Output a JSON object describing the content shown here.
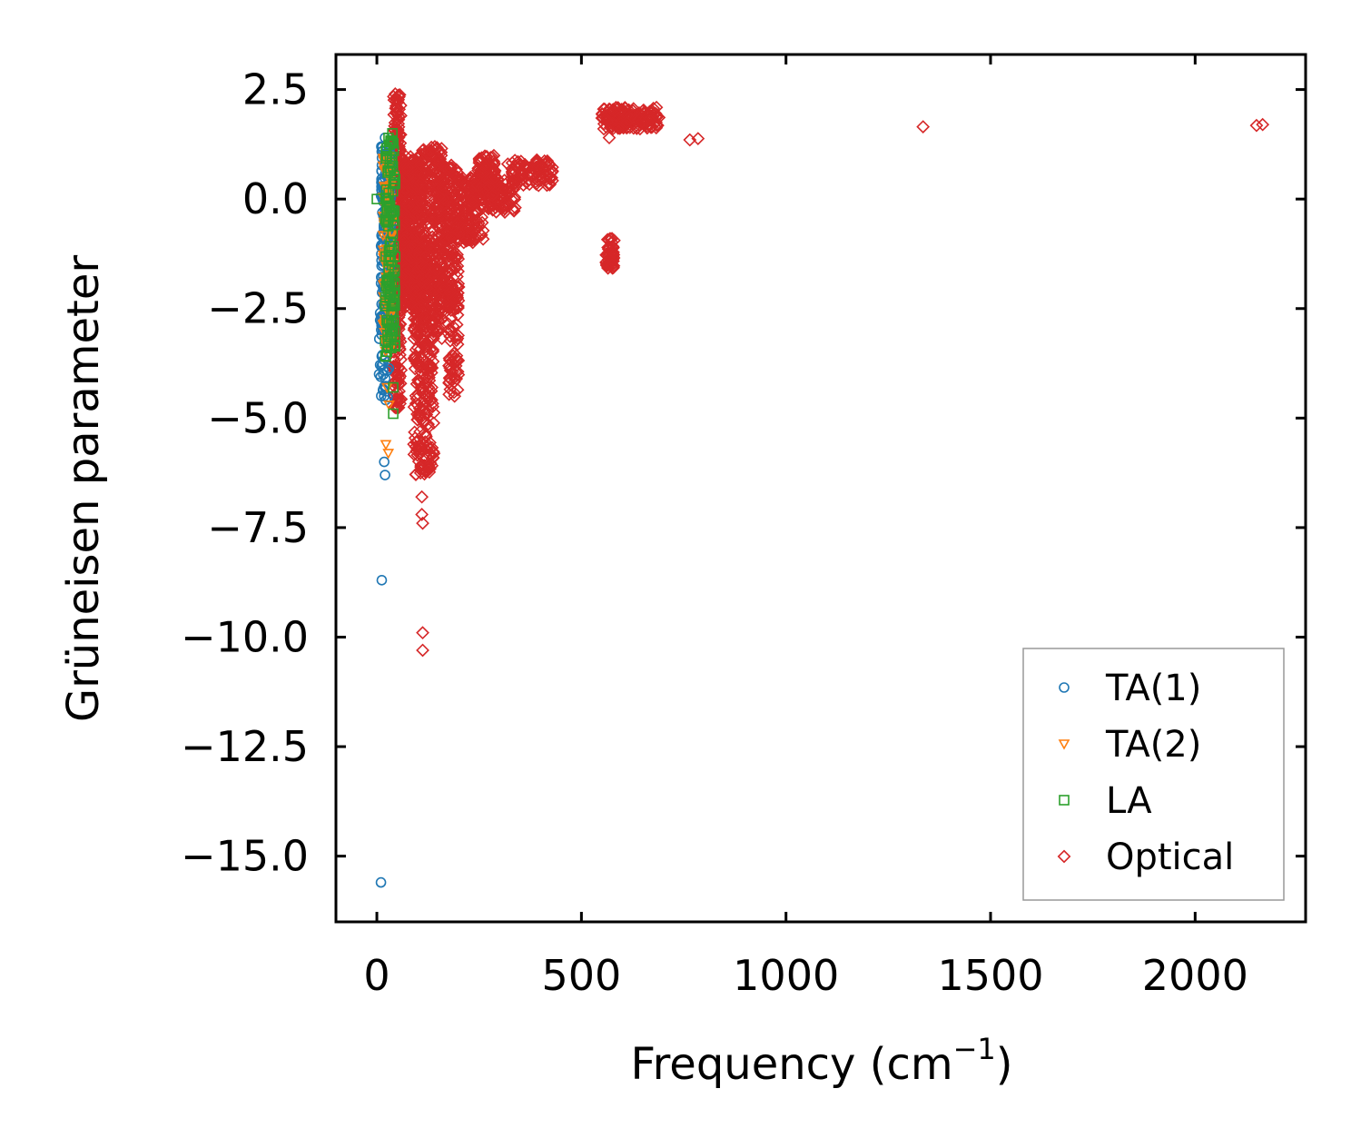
{
  "chart_data": {
    "type": "scatter",
    "title": "",
    "xlabel": "Frequency (cm",
    "xlabel_sup": "−1",
    "xlabel_end": ")",
    "ylabel": "Grüneisen parameter",
    "xlim": [
      -100,
      2270
    ],
    "ylim": [
      -16.5,
      3.3
    ],
    "xticks": [
      0,
      500,
      1000,
      1500,
      2000
    ],
    "xtick_labels": [
      "0",
      "500",
      "1000",
      "1500",
      "2000"
    ],
    "yticks": [
      2.5,
      0.0,
      -2.5,
      -5.0,
      -7.5,
      -10.0,
      -12.5,
      -15.0
    ],
    "ytick_labels": [
      "2.5",
      "0.0",
      "−2.5",
      "−5.0",
      "−7.5",
      "−10.0",
      "−12.5",
      "−15.0"
    ],
    "grid": false,
    "legend_position": "lower-right",
    "series": [
      {
        "name": "TA(1)",
        "color": "#1f77b4",
        "marker": "circle",
        "clusters": [
          {
            "x": [
              10,
              35
            ],
            "y": [
              -3.0,
              1.2
            ],
            "n": 220
          },
          {
            "x": [
              5,
              30
            ],
            "y": [
              -4.6,
              -2.0
            ],
            "n": 40
          }
        ],
        "points": [
          [
            20,
            1.4
          ],
          [
            15,
            1.1
          ],
          [
            8,
            -2.6
          ],
          [
            12,
            -3.8
          ],
          [
            18,
            -4.5
          ],
          [
            18,
            -6.0
          ],
          [
            20,
            -6.3
          ],
          [
            12,
            -8.7
          ],
          [
            10,
            -15.6
          ]
        ]
      },
      {
        "name": "TA(2)",
        "color": "#ff7f0e",
        "marker": "triangle-down",
        "clusters": [
          {
            "x": [
              15,
              40
            ],
            "y": [
              -3.5,
              1.0
            ],
            "n": 120
          }
        ],
        "points": [
          [
            25,
            -4.3
          ],
          [
            30,
            -4.7
          ],
          [
            22,
            -5.6
          ],
          [
            28,
            -5.8
          ],
          [
            20,
            -3.2
          ]
        ]
      },
      {
        "name": "LA",
        "color": "#2ca02c",
        "marker": "square",
        "clusters": [
          {
            "x": [
              20,
              45
            ],
            "y": [
              -3.6,
              1.4
            ],
            "n": 120
          }
        ],
        "points": [
          [
            0,
            0.0
          ],
          [
            38,
            1.5
          ],
          [
            40,
            -4.3
          ],
          [
            40,
            -4.9
          ],
          [
            35,
            -3.4
          ]
        ]
      },
      {
        "name": "Optical",
        "color": "#d62728",
        "marker": "diamond",
        "clusters": [
          {
            "x": [
              40,
              60
            ],
            "y": [
              -4.8,
              2.4
            ],
            "n": 260
          },
          {
            "x": [
              55,
              110
            ],
            "y": [
              -2.5,
              1.0
            ],
            "n": 500
          },
          {
            "x": [
              90,
              140
            ],
            "y": [
              -6.3,
              -1.0
            ],
            "n": 280
          },
          {
            "x": [
              105,
              160
            ],
            "y": [
              -3.2,
              1.2
            ],
            "n": 260
          },
          {
            "x": [
              150,
              200
            ],
            "y": [
              -2.5,
              0.8
            ],
            "n": 220
          },
          {
            "x": [
              175,
              200
            ],
            "y": [
              -4.5,
              -2.0
            ],
            "n": 70
          },
          {
            "x": [
              195,
              260
            ],
            "y": [
              -1.0,
              0.5
            ],
            "n": 160
          },
          {
            "x": [
              245,
              290
            ],
            "y": [
              0.0,
              1.0
            ],
            "n": 90
          },
          {
            "x": [
              270,
              340
            ],
            "y": [
              -0.3,
              0.5
            ],
            "n": 100
          },
          {
            "x": [
              330,
              430
            ],
            "y": [
              0.3,
              0.9
            ],
            "n": 100
          },
          {
            "x": [
              560,
              580
            ],
            "y": [
              -1.6,
              -0.9
            ],
            "n": 50
          },
          {
            "x": [
              550,
              690
            ],
            "y": [
              1.6,
              2.1
            ],
            "n": 150
          }
        ],
        "points": [
          [
            45,
            2.4
          ],
          [
            110,
            -6.8
          ],
          [
            110,
            -7.2
          ],
          [
            112,
            -7.4
          ],
          [
            112,
            -9.9
          ],
          [
            112,
            -10.3
          ],
          [
            125,
            -4.0
          ],
          [
            190,
            -4.5
          ],
          [
            320,
            0.8
          ],
          [
            575,
            -1.5
          ],
          [
            568,
            1.4
          ],
          [
            765,
            1.35
          ],
          [
            785,
            1.38
          ],
          [
            1335,
            1.65
          ],
          [
            2150,
            1.68
          ],
          [
            2165,
            1.7
          ]
        ]
      }
    ]
  }
}
